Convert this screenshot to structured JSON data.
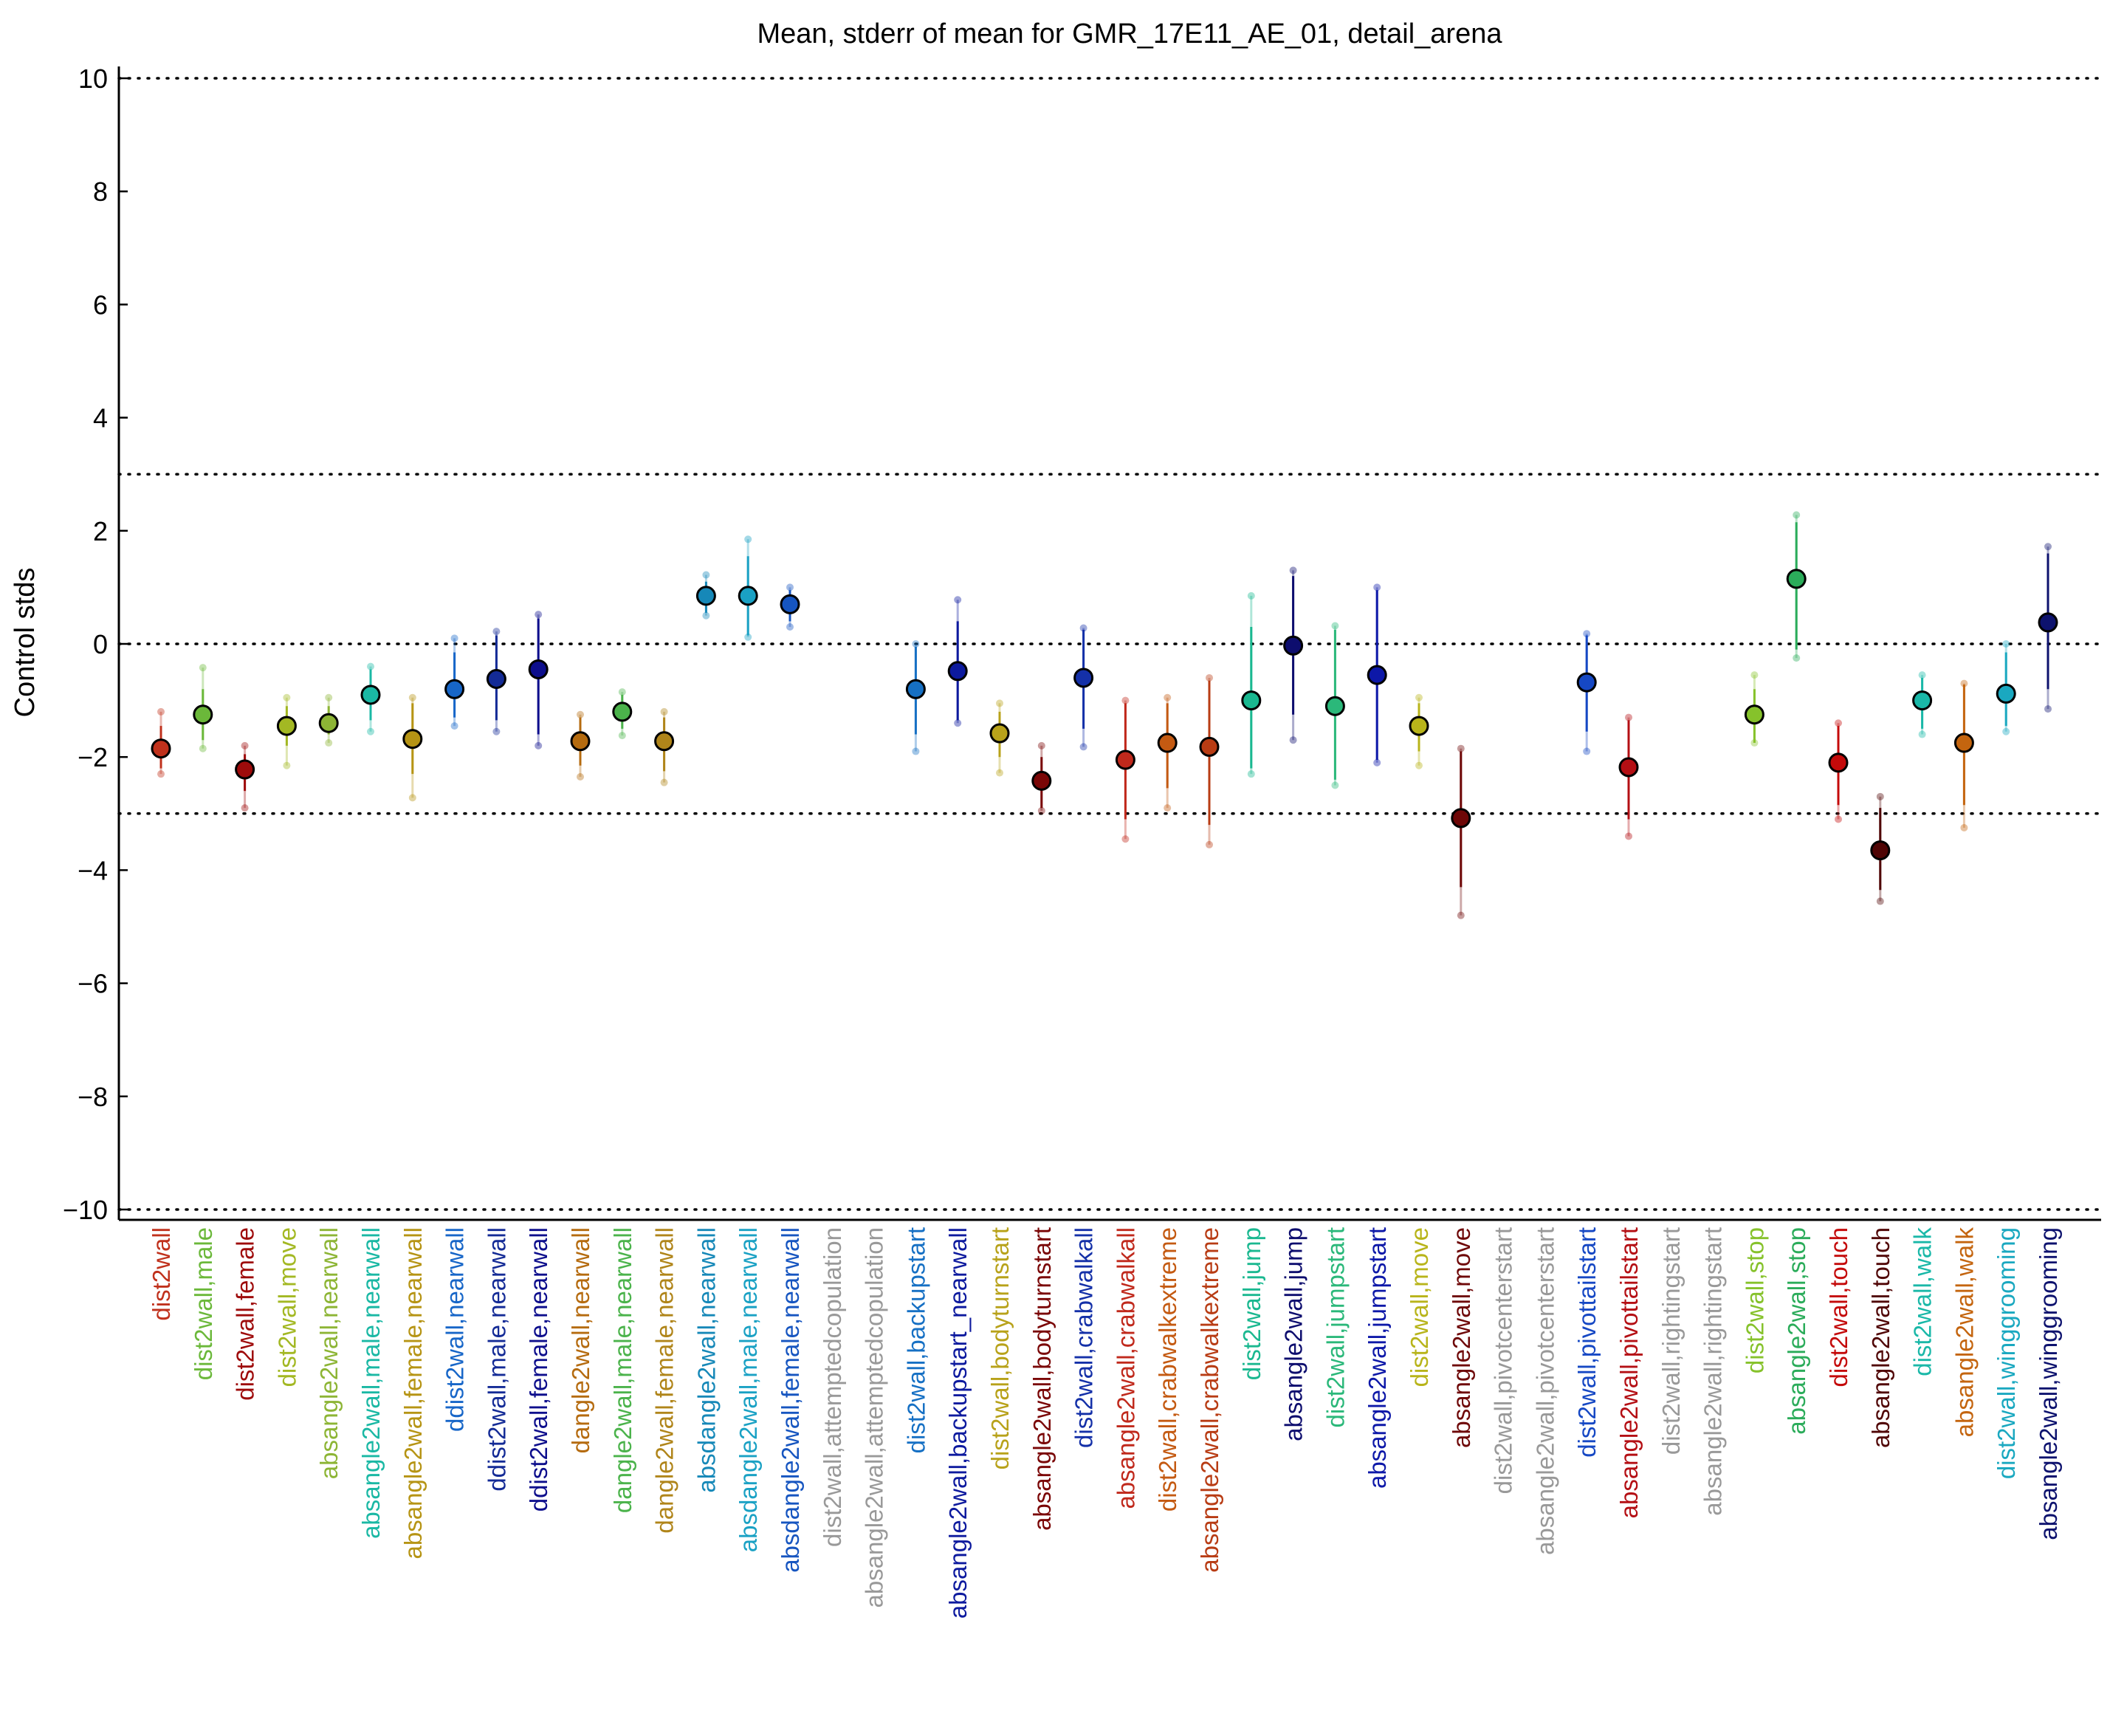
{
  "chart_data": {
    "type": "scatter",
    "title": "Mean, stderr of mean for GMR_17E11_AE_01, detail_arena",
    "xlabel": "",
    "ylabel": "Control stds",
    "ylim": [
      -10,
      10
    ],
    "yticks": [
      -10,
      -8,
      -6,
      -4,
      -2,
      0,
      2,
      4,
      6,
      8,
      10
    ],
    "ytick_labels": [
      "−10",
      "−8",
      "−6",
      "−4",
      "−2",
      "0",
      "2",
      "4",
      "6",
      "8",
      "10"
    ],
    "reference_lines": [
      -10,
      -3,
      0,
      3,
      10
    ],
    "grid": false,
    "categories": [
      {
        "label": "dist2wall",
        "color": "#c0311c",
        "mean": -1.85,
        "err_low": -2.2,
        "err_high": -1.45,
        "ext_low": -2.3,
        "ext_high": -1.2
      },
      {
        "label": "dist2wall,male",
        "color": "#6bb83a",
        "mean": -1.25,
        "err_low": -1.7,
        "err_high": -0.8,
        "ext_low": -1.85,
        "ext_high": -0.42
      },
      {
        "label": "dist2wall,female",
        "color": "#9e0b0b",
        "mean": -2.22,
        "err_low": -2.6,
        "err_high": -1.95,
        "ext_low": -2.9,
        "ext_high": -1.8
      },
      {
        "label": "dist2wall,move",
        "color": "#a3b823",
        "mean": -1.45,
        "err_low": -1.8,
        "err_high": -1.1,
        "ext_low": -2.15,
        "ext_high": -0.95
      },
      {
        "label": "absangle2wall,nearwall",
        "color": "#8db535",
        "mean": -1.4,
        "err_low": -1.6,
        "err_high": -1.1,
        "ext_low": -1.75,
        "ext_high": -0.95
      },
      {
        "label": "absangle2wall,male,nearwall",
        "color": "#1ab8a4",
        "mean": -0.9,
        "err_low": -1.35,
        "err_high": -0.45,
        "ext_low": -1.55,
        "ext_high": -0.4
      },
      {
        "label": "absangle2wall,female,nearwall",
        "color": "#b69414",
        "mean": -1.68,
        "err_low": -2.3,
        "err_high": -1.05,
        "ext_low": -2.72,
        "ext_high": -0.95
      },
      {
        "label": "ddist2wall,nearwall",
        "color": "#1766c8",
        "mean": -0.8,
        "err_low": -1.3,
        "err_high": -0.15,
        "ext_low": -1.45,
        "ext_high": 0.1
      },
      {
        "label": "ddist2wall,male,nearwall",
        "color": "#142b96",
        "mean": -0.62,
        "err_low": -1.35,
        "err_high": 0.15,
        "ext_low": -1.55,
        "ext_high": 0.22
      },
      {
        "label": "ddist2wall,female,nearwall",
        "color": "#0d0e8c",
        "mean": -0.45,
        "err_low": -1.6,
        "err_high": 0.45,
        "ext_low": -1.8,
        "ext_high": 0.52
      },
      {
        "label": "dangle2wall,nearwall",
        "color": "#b56b0f",
        "mean": -1.72,
        "err_low": -2.15,
        "err_high": -1.3,
        "ext_low": -2.35,
        "ext_high": -1.25
      },
      {
        "label": "dangle2wall,male,nearwall",
        "color": "#4bb34b",
        "mean": -1.2,
        "err_low": -1.5,
        "err_high": -0.9,
        "ext_low": -1.62,
        "ext_high": -0.85
      },
      {
        "label": "dangle2wall,female,nearwall",
        "color": "#b0851a",
        "mean": -1.72,
        "err_low": -2.25,
        "err_high": -1.3,
        "ext_low": -2.45,
        "ext_high": -1.2
      },
      {
        "label": "absdangle2wall,nearwall",
        "color": "#1688b8",
        "mean": 0.85,
        "err_low": 0.55,
        "err_high": 1.1,
        "ext_low": 0.5,
        "ext_high": 1.22
      },
      {
        "label": "absdangle2wall,male,nearwall",
        "color": "#1aa1c4",
        "mean": 0.85,
        "err_low": 0.15,
        "err_high": 1.55,
        "ext_low": 0.12,
        "ext_high": 1.85
      },
      {
        "label": "absdangle2wall,female,nearwall",
        "color": "#1655c0",
        "mean": 0.7,
        "err_low": 0.4,
        "err_high": 0.95,
        "ext_low": 0.3,
        "ext_high": 1.0
      },
      {
        "label": "dist2wall,attemptedcopulation",
        "color": "#999999",
        "mean": null
      },
      {
        "label": "absangle2wall,attemptedcopulation",
        "color": "#999999",
        "mean": null
      },
      {
        "label": "dist2wall,backupstart",
        "color": "#1670c4",
        "mean": -0.8,
        "err_low": -1.6,
        "err_high": -0.05,
        "ext_low": -1.9,
        "ext_high": 0.0
      },
      {
        "label": "absangle2wall,backupstart_nearwall",
        "color": "#0d1a9e",
        "mean": -0.48,
        "err_low": -1.35,
        "err_high": 0.4,
        "ext_low": -1.4,
        "ext_high": 0.78
      },
      {
        "label": "dist2wall,bodyturnstart",
        "color": "#b8a21a",
        "mean": -1.58,
        "err_low": -2.0,
        "err_high": -1.2,
        "ext_low": -2.28,
        "ext_high": -1.05
      },
      {
        "label": "absangle2wall,bodyturnstart",
        "color": "#7a0606",
        "mean": -2.42,
        "err_low": -2.9,
        "err_high": -2.0,
        "ext_low": -2.95,
        "ext_high": -1.8
      },
      {
        "label": "dist2wall,crabwalkall",
        "color": "#1430a8",
        "mean": -0.6,
        "err_low": -1.5,
        "err_high": 0.25,
        "ext_low": -1.82,
        "ext_high": 0.28
      },
      {
        "label": "absangle2wall,crabwalkall",
        "color": "#c0291c",
        "mean": -2.05,
        "err_low": -3.1,
        "err_high": -1.05,
        "ext_low": -3.45,
        "ext_high": -1.0
      },
      {
        "label": "dist2wall,crabwalkextreme",
        "color": "#c45a12",
        "mean": -1.75,
        "err_low": -2.55,
        "err_high": -1.05,
        "ext_low": -2.9,
        "ext_high": -0.95
      },
      {
        "label": "absangle2wall,crabwalkextreme",
        "color": "#b83c14",
        "mean": -1.82,
        "err_low": -3.2,
        "err_high": -0.65,
        "ext_low": -3.55,
        "ext_high": -0.6
      },
      {
        "label": "dist2wall,jump",
        "color": "#1ab890",
        "mean": -1.0,
        "err_low": -2.2,
        "err_high": 0.3,
        "ext_low": -2.3,
        "ext_high": 0.85
      },
      {
        "label": "absangle2wall,jump",
        "color": "#0d0d6e",
        "mean": -0.03,
        "err_low": -1.25,
        "err_high": 1.2,
        "ext_low": -1.7,
        "ext_high": 1.3
      },
      {
        "label": "dist2wall,jumpstart",
        "color": "#2bb87a",
        "mean": -1.1,
        "err_low": -2.4,
        "err_high": 0.25,
        "ext_low": -2.5,
        "ext_high": 0.32
      },
      {
        "label": "absangle2wall,jumpstart",
        "color": "#0d18a8",
        "mean": -0.55,
        "err_low": -2.05,
        "err_high": 0.95,
        "ext_low": -2.1,
        "ext_high": 1.0
      },
      {
        "label": "dist2wall,move",
        "color": "#b8b41a",
        "mean": -1.45,
        "err_low": -1.9,
        "err_high": -1.05,
        "ext_low": -2.15,
        "ext_high": -0.95
      },
      {
        "label": "absangle2wall,move",
        "color": "#6e0707",
        "mean": -3.08,
        "err_low": -4.3,
        "err_high": -1.9,
        "ext_low": -4.8,
        "ext_high": -1.85
      },
      {
        "label": "dist2wall,pivotcenterstart",
        "color": "#999999",
        "mean": null
      },
      {
        "label": "absangle2wall,pivotcenterstart",
        "color": "#999999",
        "mean": null
      },
      {
        "label": "dist2wall,pivottailstart",
        "color": "#1648c4",
        "mean": -0.68,
        "err_low": -1.55,
        "err_high": 0.15,
        "ext_low": -1.9,
        "ext_high": 0.18
      },
      {
        "label": "absangle2wall,pivottailstart",
        "color": "#b40f14",
        "mean": -2.18,
        "err_low": -3.1,
        "err_high": -1.35,
        "ext_low": -3.4,
        "ext_high": -1.3
      },
      {
        "label": "dist2wall,rightingstart",
        "color": "#999999",
        "mean": null
      },
      {
        "label": "absangle2wall,rightingstart",
        "color": "#999999",
        "mean": null
      },
      {
        "label": "dist2wall,stop",
        "color": "#86c22b",
        "mean": -1.25,
        "err_low": -1.75,
        "err_high": -0.8,
        "ext_low": -1.75,
        "ext_high": -0.55
      },
      {
        "label": "absangle2wall,stop",
        "color": "#2bac5a",
        "mean": 1.15,
        "err_low": -0.1,
        "err_high": 2.15,
        "ext_low": -0.25,
        "ext_high": 2.28
      },
      {
        "label": "dist2wall,touch",
        "color": "#c40a0a",
        "mean": -2.1,
        "err_low": -2.85,
        "err_high": -1.45,
        "ext_low": -3.1,
        "ext_high": -1.4
      },
      {
        "label": "absangle2wall,touch",
        "color": "#500505",
        "mean": -3.65,
        "err_low": -4.35,
        "err_high": -2.9,
        "ext_low": -4.55,
        "ext_high": -2.7
      },
      {
        "label": "dist2wall,walk",
        "color": "#1ab8a8",
        "mean": -1.0,
        "err_low": -1.5,
        "err_high": -0.6,
        "ext_low": -1.6,
        "ext_high": -0.55
      },
      {
        "label": "absangle2wall,walk",
        "color": "#c4650f",
        "mean": -1.75,
        "err_low": -2.85,
        "err_high": -0.72,
        "ext_low": -3.25,
        "ext_high": -0.7
      },
      {
        "label": "dist2wall,winggrooming",
        "color": "#1aa8c0",
        "mean": -0.88,
        "err_low": -1.45,
        "err_high": -0.15,
        "ext_low": -1.55,
        "ext_high": 0.0
      },
      {
        "label": "absangle2wall,winggrooming",
        "color": "#0d126e",
        "mean": 0.38,
        "err_low": -0.8,
        "err_high": 1.6,
        "ext_low": -1.15,
        "ext_high": 1.72
      }
    ]
  }
}
